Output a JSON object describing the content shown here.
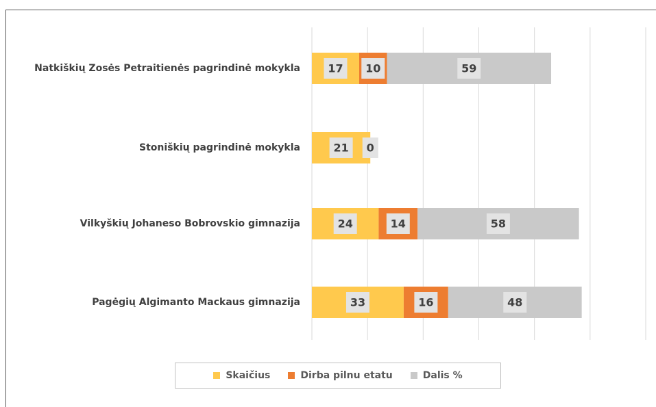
{
  "chart_data": {
    "type": "stacked-barh",
    "categories": [
      "Natkiškių Zosės Petraitienės pagrindinė mokykla",
      "Stoniškių pagrindinė mokykla",
      "Vilkyškių Johaneso Bobrovskio gimnazija",
      "Pagėgių Algimanto Mackaus gimnazija"
    ],
    "series": [
      {
        "name": "Skaičius",
        "color": "#ffc94d",
        "values": [
          17,
          21,
          24,
          33
        ]
      },
      {
        "name": "Dirba pilnu etatu",
        "color": "#ed7d31",
        "values": [
          10,
          0,
          14,
          16
        ]
      },
      {
        "name": "Dalis %",
        "color": "#c9c9c9",
        "values": [
          59,
          null,
          58,
          48
        ]
      }
    ],
    "xlim": [
      0,
      120
    ],
    "xticks": [
      0,
      20,
      40,
      60,
      80,
      100,
      120
    ],
    "grid": true,
    "legend": "bottom"
  }
}
